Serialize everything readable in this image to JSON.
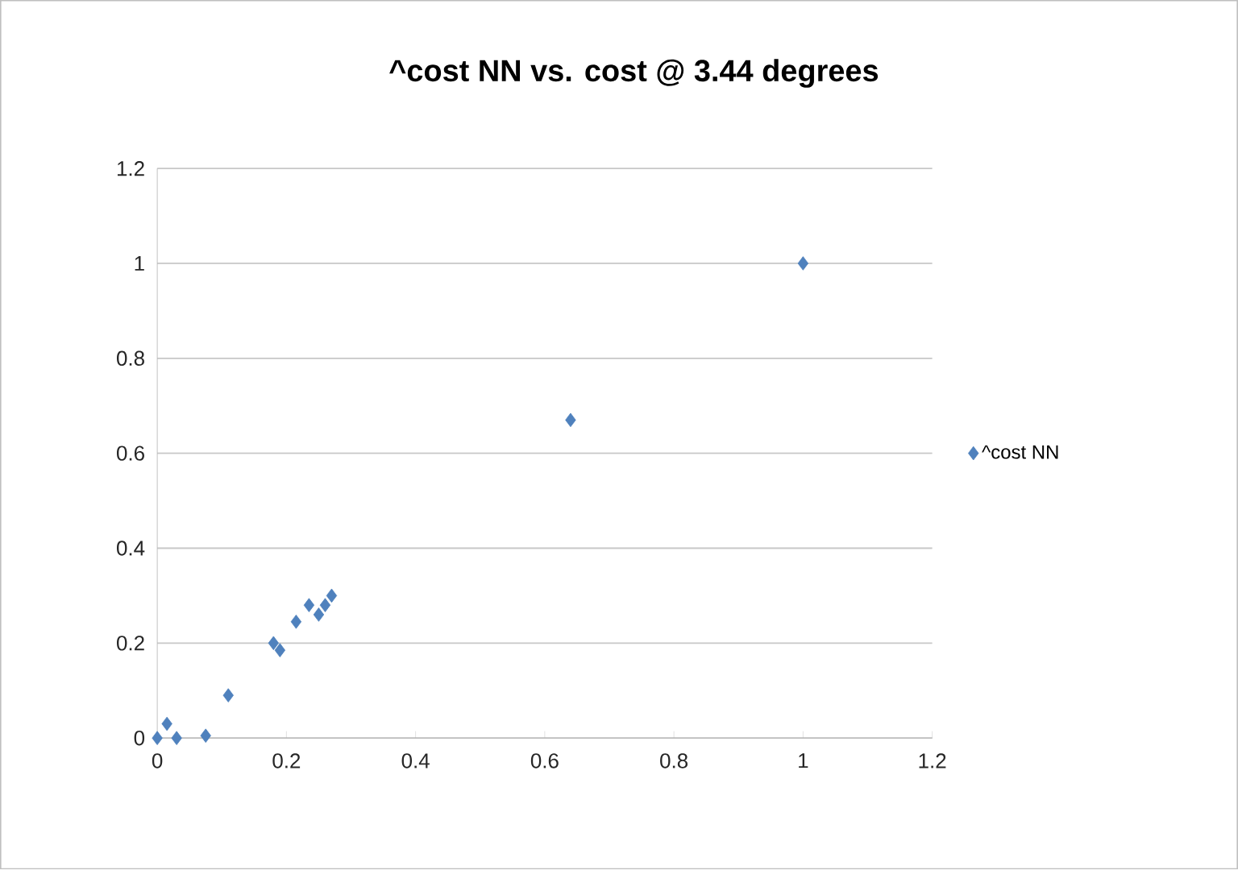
{
  "chart_data": {
    "type": "scatter",
    "title": "^cost NN vs. cost @ 3.44 degrees",
    "series": [
      {
        "name": "^cost NN",
        "color": "#4f81bd",
        "x": [
          0,
          0.015,
          0.03,
          0.075,
          0.11,
          0.18,
          0.19,
          0.215,
          0.235,
          0.25,
          0.26,
          0.27,
          0.64,
          1
        ],
        "values": [
          0,
          0.03,
          0,
          0.005,
          0.09,
          0.2,
          0.185,
          0.245,
          0.28,
          0.26,
          0.28,
          0.3,
          0.67,
          1
        ]
      }
    ],
    "xlim": [
      0,
      1.2
    ],
    "ylim": [
      0,
      1.2
    ],
    "xticks": [
      0,
      0.2,
      0.4,
      0.6,
      0.8,
      1,
      1.2
    ],
    "yticks": [
      0,
      0.2,
      0.4,
      0.6,
      0.8,
      1,
      1.2
    ],
    "grid": "y",
    "legend": "right",
    "marker": "diamond"
  }
}
